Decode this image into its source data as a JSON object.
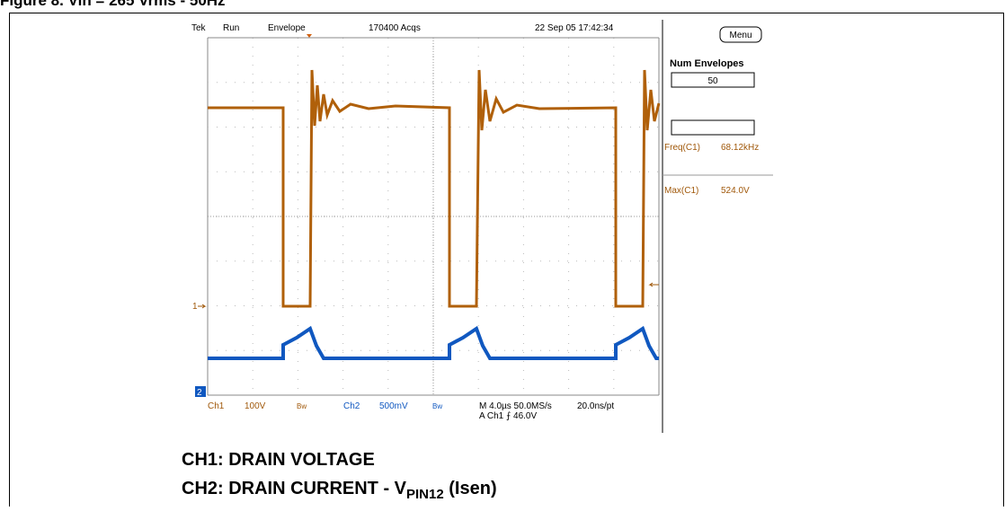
{
  "figure_title": "Figure 8.    Vin = 265 Vrms - 50Hz",
  "status_bar": {
    "brand": "Tek",
    "state": "Run",
    "mode": "Envelope",
    "acquisitions": "170400 Acqs",
    "timestamp": "22 Sep 05 17:42:34"
  },
  "menu_button": "Menu",
  "side_panel": {
    "heading": "Num Envelopes",
    "value": "50",
    "measurements": [
      {
        "name": "Freq(C1)",
        "value": "68.12kHz"
      },
      {
        "name": "Max(C1)",
        "value": "524.0V"
      }
    ]
  },
  "channel_markers": {
    "ch1": "1",
    "ch2": "2"
  },
  "bottom_bar": {
    "ch1": "Ch1",
    "ch1_scale": "100V",
    "ch1_bw": "Bw",
    "ch2": "Ch2",
    "ch2_scale": "500mV",
    "ch2_bw": "Bw",
    "timebase": "M 4.0µs 50.0MS/s",
    "resolution": "20.0ns/pt",
    "trigger": "A  Ch1  ⨍  46.0V"
  },
  "captions": {
    "line1": "CH1: DRAIN VOLTAGE",
    "line2": "CH2: DRAIN CURRENT - V",
    "line2_sub": "PIN12",
    "line2_end": " (Isen)"
  }
}
